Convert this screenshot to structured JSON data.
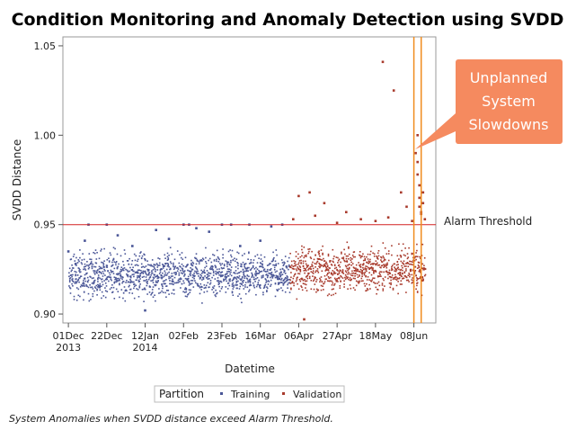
{
  "chart_data": {
    "type": "scatter",
    "title": "Condition Monitoring and Anomaly Detection using SVDD",
    "xlabel": "Datetime",
    "ylabel": "SVDD Distance",
    "xlim": [
      "2013-11-28",
      "2014-06-20"
    ],
    "ylim": [
      0.895,
      1.055
    ],
    "y_ticks": [
      {
        "value": 0.9,
        "label": "0.90"
      },
      {
        "value": 0.95,
        "label": "0.95"
      },
      {
        "value": 1.0,
        "label": "1.00"
      },
      {
        "value": 1.05,
        "label": "1.05"
      }
    ],
    "x_ticks": [
      {
        "date": "2013-12-01",
        "line1": "01Dec",
        "line2": "2013"
      },
      {
        "date": "2013-12-22",
        "line1": "22Dec",
        "line2": ""
      },
      {
        "date": "2014-01-12",
        "line1": "12Jan",
        "line2": "2014"
      },
      {
        "date": "2014-02-02",
        "line1": "02Feb",
        "line2": ""
      },
      {
        "date": "2014-02-23",
        "line1": "23Feb",
        "line2": ""
      },
      {
        "date": "2014-03-16",
        "line1": "16Mar",
        "line2": ""
      },
      {
        "date": "2014-04-06",
        "line1": "06Apr",
        "line2": ""
      },
      {
        "date": "2014-04-27",
        "line1": "27Apr",
        "line2": ""
      },
      {
        "date": "2014-05-18",
        "line1": "18May",
        "line2": ""
      },
      {
        "date": "2014-06-08",
        "line1": "08Jun",
        "line2": ""
      }
    ],
    "threshold": {
      "value": 0.95,
      "label": "Alarm Threshold",
      "color": "#d42020"
    },
    "event_lines": {
      "dates": [
        "2014-06-08",
        "2014-06-12"
      ],
      "color": "#f08c1e"
    },
    "callout": {
      "lines": [
        "Unplanned",
        "System",
        "Slowdowns"
      ],
      "color": "#f58a5f"
    },
    "legend": {
      "title": "Partition",
      "position": "bottom"
    },
    "series": [
      {
        "name": "Training",
        "color": "#4a5697",
        "date_range": [
          "2013-12-01",
          "2014-04-01"
        ],
        "band": [
          0.905,
          0.94
        ],
        "points": [
          {
            "date": "2013-12-01",
            "y": 0.935
          },
          {
            "date": "2013-12-05",
            "y": 0.928
          },
          {
            "date": "2013-12-10",
            "y": 0.941
          },
          {
            "date": "2013-12-12",
            "y": 0.95
          },
          {
            "date": "2013-12-18",
            "y": 0.915
          },
          {
            "date": "2013-12-22",
            "y": 0.95
          },
          {
            "date": "2013-12-28",
            "y": 0.944
          },
          {
            "date": "2014-01-05",
            "y": 0.938
          },
          {
            "date": "2014-01-12",
            "y": 0.902
          },
          {
            "date": "2014-01-18",
            "y": 0.947
          },
          {
            "date": "2014-01-25",
            "y": 0.942
          },
          {
            "date": "2014-02-02",
            "y": 0.95
          },
          {
            "date": "2014-02-05",
            "y": 0.95
          },
          {
            "date": "2014-02-09",
            "y": 0.948
          },
          {
            "date": "2014-02-16",
            "y": 0.946
          },
          {
            "date": "2014-02-23",
            "y": 0.95
          },
          {
            "date": "2014-02-28",
            "y": 0.95
          },
          {
            "date": "2014-03-05",
            "y": 0.938
          },
          {
            "date": "2014-03-10",
            "y": 0.95
          },
          {
            "date": "2014-03-16",
            "y": 0.941
          },
          {
            "date": "2014-03-22",
            "y": 0.949
          },
          {
            "date": "2014-03-28",
            "y": 0.95
          }
        ]
      },
      {
        "name": "Validation",
        "color": "#a83a2c",
        "date_range": [
          "2014-04-01",
          "2014-06-14"
        ],
        "band": [
          0.907,
          0.943
        ],
        "points": [
          {
            "date": "2014-04-03",
            "y": 0.953
          },
          {
            "date": "2014-04-06",
            "y": 0.966
          },
          {
            "date": "2014-04-09",
            "y": 0.897
          },
          {
            "date": "2014-04-12",
            "y": 0.968
          },
          {
            "date": "2014-04-15",
            "y": 0.955
          },
          {
            "date": "2014-04-20",
            "y": 0.962
          },
          {
            "date": "2014-04-27",
            "y": 0.951
          },
          {
            "date": "2014-05-02",
            "y": 0.957
          },
          {
            "date": "2014-05-10",
            "y": 0.953
          },
          {
            "date": "2014-05-18",
            "y": 0.952
          },
          {
            "date": "2014-05-22",
            "y": 1.041
          },
          {
            "date": "2014-05-25",
            "y": 0.954
          },
          {
            "date": "2014-05-28",
            "y": 1.025
          },
          {
            "date": "2014-06-01",
            "y": 0.968
          },
          {
            "date": "2014-06-04",
            "y": 0.96
          },
          {
            "date": "2014-06-07",
            "y": 0.952
          },
          {
            "date": "2014-06-09",
            "y": 0.99
          },
          {
            "date": "2014-06-10",
            "y": 1.0
          },
          {
            "date": "2014-06-10",
            "y": 0.985
          },
          {
            "date": "2014-06-10",
            "y": 0.978
          },
          {
            "date": "2014-06-11",
            "y": 0.972
          },
          {
            "date": "2014-06-11",
            "y": 0.965
          },
          {
            "date": "2014-06-11",
            "y": 0.96
          },
          {
            "date": "2014-06-12",
            "y": 0.957
          },
          {
            "date": "2014-06-12",
            "y": 0.956
          },
          {
            "date": "2014-06-13",
            "y": 0.962
          },
          {
            "date": "2014-06-13",
            "y": 0.968
          },
          {
            "date": "2014-06-14",
            "y": 0.953
          }
        ]
      }
    ],
    "footnote": "System Anomalies when SVDD distance exceed Alarm Threshold."
  }
}
